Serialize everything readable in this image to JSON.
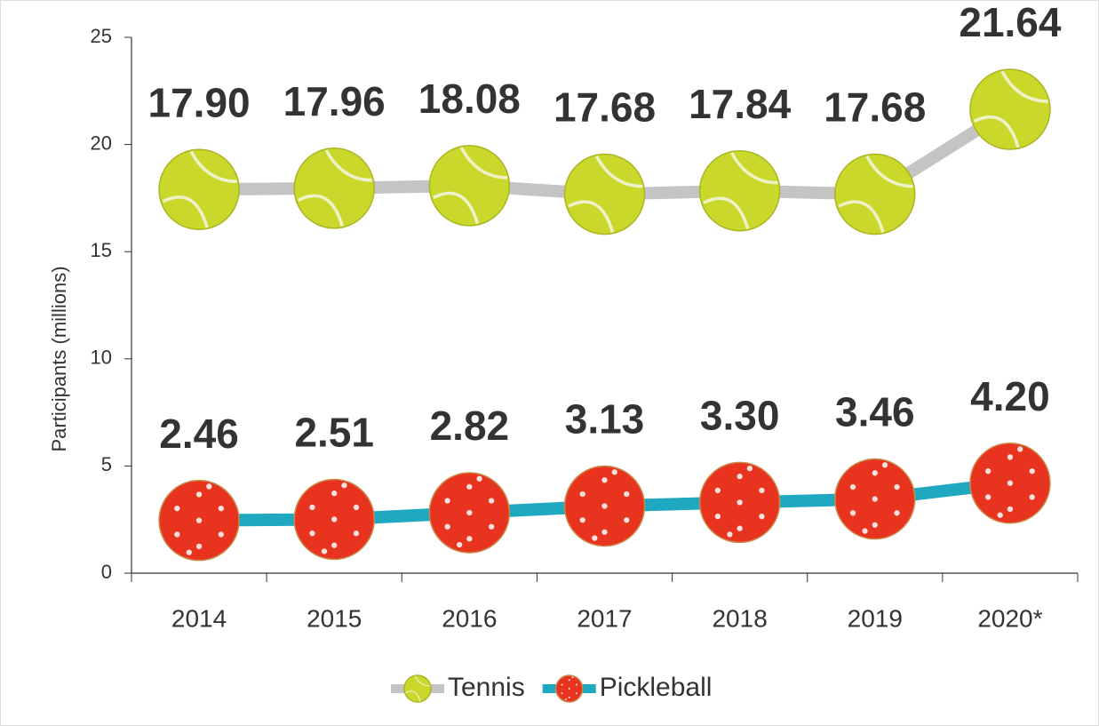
{
  "chart_data": {
    "type": "line",
    "y_label": "Participants (millions)",
    "categories": [
      "2014",
      "2015",
      "2016",
      "2017",
      "2018",
      "2019",
      "2020*"
    ],
    "series": [
      {
        "name": "Tennis",
        "color": "#c9d82a",
        "line_color": "#c4c4c4",
        "values": [
          17.9,
          17.96,
          18.08,
          17.68,
          17.84,
          17.68,
          21.64
        ],
        "value_labels": [
          "17.90",
          "17.96",
          "18.08",
          "17.68",
          "17.84",
          "17.68",
          "21.64"
        ]
      },
      {
        "name": "Pickleball",
        "color": "#e8341f",
        "line_color": "#1fa9c0",
        "values": [
          2.46,
          2.51,
          2.82,
          3.13,
          3.3,
          3.46,
          4.2
        ],
        "value_labels": [
          "2.46",
          "2.51",
          "2.82",
          "3.13",
          "3.30",
          "3.46",
          "4.20"
        ]
      }
    ],
    "ylim": [
      0,
      25
    ],
    "yticks": [
      0,
      5,
      10,
      15,
      20,
      25
    ]
  }
}
